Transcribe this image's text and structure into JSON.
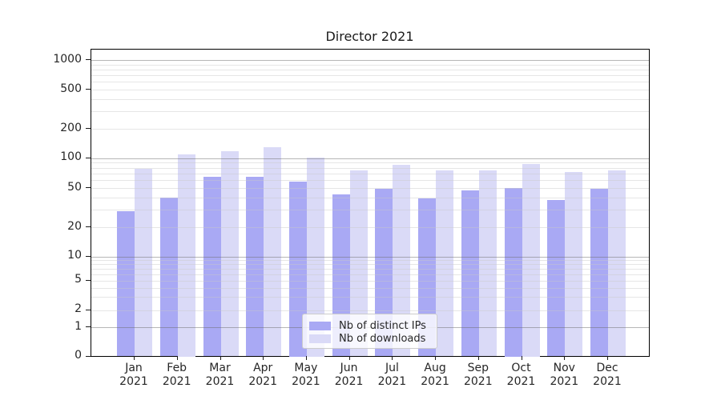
{
  "title": "Director 2021",
  "legend": {
    "items": [
      {
        "label": "Nb of distinct IPs",
        "color": "#a9a9f4"
      },
      {
        "label": "Nb of downloads",
        "color": "#dadaf7"
      }
    ]
  },
  "axes": {
    "y_tick_labels": [
      "0",
      "1",
      "2",
      "5",
      "10",
      "20",
      "50",
      "100",
      "200",
      "500",
      "1000"
    ],
    "x_tick_months": [
      "Jan",
      "Feb",
      "Mar",
      "Apr",
      "May",
      "Jun",
      "Jul",
      "Aug",
      "Sep",
      "Oct",
      "Nov",
      "Dec"
    ],
    "x_tick_year": "2021"
  },
  "colors": {
    "series_distinct_ips": "#a9a9f4",
    "series_downloads": "#dadaf7",
    "grid_major": "#b4b4b4",
    "grid_minor": "#e9e9e9",
    "spine": "#000000",
    "text": "#262626",
    "legend_border": "#cccccc"
  },
  "chart_data": {
    "type": "bar",
    "title": "Director 2021",
    "categories": [
      "Jan 2021",
      "Feb 2021",
      "Mar 2021",
      "Apr 2021",
      "May 2021",
      "Jun 2021",
      "Jul 2021",
      "Aug 2021",
      "Sep 2021",
      "Oct 2021",
      "Nov 2021",
      "Dec 2021"
    ],
    "series": [
      {
        "name": "Nb of distinct IPs",
        "color": "#a9a9f4",
        "values": [
          29,
          40,
          65,
          65,
          58,
          43,
          49,
          39,
          47,
          50,
          38,
          49
        ]
      },
      {
        "name": "Nb of downloads",
        "color": "#dadaf7",
        "values": [
          78,
          110,
          117,
          129,
          101,
          75,
          85,
          75,
          75,
          87,
          72,
          75
        ]
      }
    ],
    "xlabel": "",
    "ylabel": "",
    "yscale": "symlog",
    "yticks": [
      0,
      1,
      2,
      5,
      10,
      20,
      50,
      100,
      200,
      500,
      1000
    ],
    "ylim": [
      0,
      1250
    ],
    "grid": "horizontal major and minor gridlines drawn above bars",
    "legend_position": "lower center (inside axes)"
  }
}
